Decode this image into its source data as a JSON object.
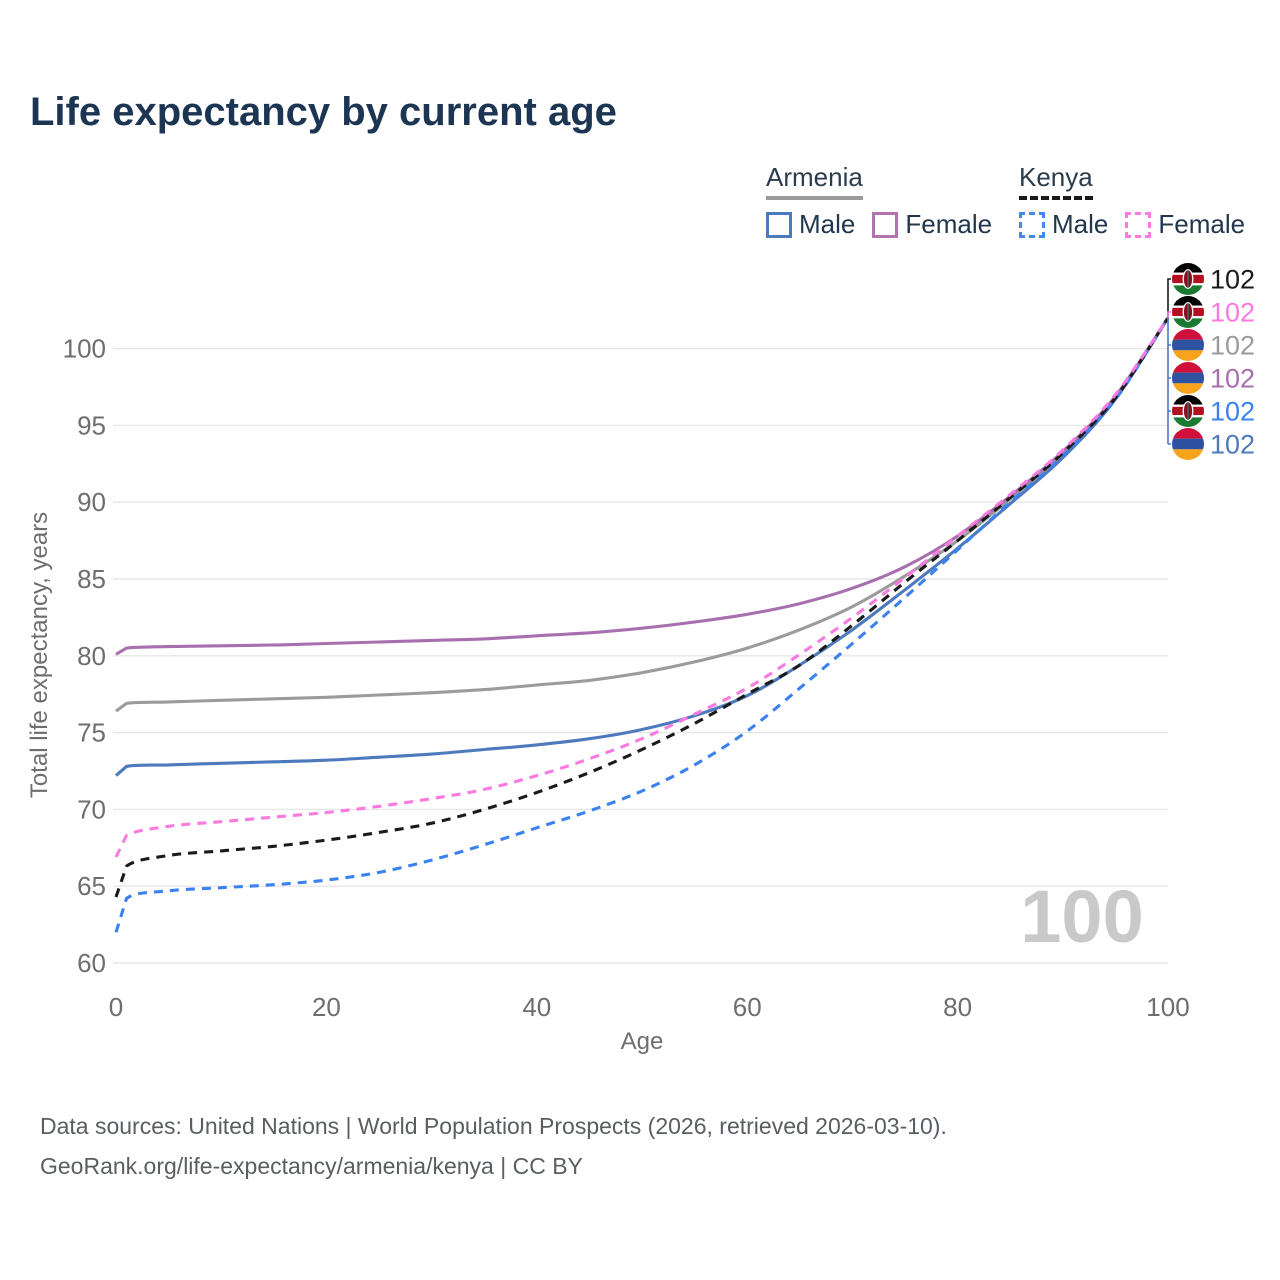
{
  "header": {
    "title": "Life expectancy by current age"
  },
  "legend": {
    "groups": [
      {
        "country": "Armenia",
        "line_style": "solid",
        "underline_color": "#9b9b9b",
        "items": [
          {
            "label": "Male",
            "box_color": "#4d79bd",
            "box_style": "solid"
          },
          {
            "label": "Female",
            "box_color": "#b273ae",
            "box_style": "solid"
          }
        ]
      },
      {
        "country": "Kenya",
        "line_style": "dashed",
        "underline_color": "#1a1a1a",
        "items": [
          {
            "label": "Male",
            "box_color": "#4189f0",
            "box_style": "dashed"
          },
          {
            "label": "Female",
            "box_color": "#fb7ae1",
            "box_style": "dashed"
          }
        ]
      }
    ]
  },
  "chart_data": {
    "type": "line",
    "title": "Life expectancy by current age",
    "xlabel": "Age",
    "ylabel": "Total life expectancy, years",
    "xlim": [
      0,
      100
    ],
    "ylim": [
      60,
      103
    ],
    "x_ticks": [
      0,
      20,
      40,
      60,
      80,
      100
    ],
    "y_ticks": [
      60,
      65,
      70,
      75,
      80,
      85,
      90,
      95,
      100
    ],
    "grid": "horizontal",
    "watermark": "100",
    "ages": [
      0,
      1,
      5,
      10,
      15,
      20,
      25,
      30,
      35,
      40,
      45,
      50,
      55,
      60,
      65,
      70,
      75,
      80,
      85,
      90,
      95,
      100
    ],
    "series": [
      {
        "id": "armenia-both",
        "name": "Armenia",
        "color": "#9b9b9b",
        "dash": false,
        "values": [
          76.4,
          76.9,
          77.0,
          77.1,
          77.2,
          77.3,
          77.45,
          77.6,
          77.8,
          78.1,
          78.4,
          78.9,
          79.6,
          80.5,
          81.7,
          83.2,
          85.2,
          87.5,
          90.2,
          93.1,
          96.8,
          102
        ]
      },
      {
        "id": "armenia-male",
        "name": "Armenia Male",
        "color": "#4d79bd",
        "dash": false,
        "values": [
          72.2,
          72.8,
          72.9,
          73.0,
          73.1,
          73.2,
          73.4,
          73.6,
          73.9,
          74.2,
          74.6,
          75.2,
          76.1,
          77.4,
          79.4,
          81.7,
          84.3,
          87.0,
          89.9,
          92.9,
          96.7,
          102
        ]
      },
      {
        "id": "armenia-female",
        "name": "Armenia Female",
        "color": "#a86fae",
        "dash": false,
        "values": [
          80.1,
          80.5,
          80.6,
          80.65,
          80.7,
          80.8,
          80.9,
          81.0,
          81.1,
          81.3,
          81.5,
          81.8,
          82.2,
          82.7,
          83.4,
          84.4,
          85.8,
          87.8,
          90.4,
          93.3,
          96.9,
          102
        ]
      },
      {
        "id": "kenya-male",
        "name": "Kenya Male",
        "color": "#3b82f0",
        "dash": true,
        "values": [
          62.0,
          64.2,
          64.7,
          64.9,
          65.1,
          65.4,
          65.9,
          66.7,
          67.7,
          68.8,
          69.9,
          71.2,
          72.9,
          75.1,
          77.9,
          80.8,
          83.8,
          86.9,
          90.0,
          93.0,
          96.7,
          102
        ]
      },
      {
        "id": "kenya-both",
        "name": "Kenya",
        "color": "#1a1a1a",
        "dash": true,
        "values": [
          64.3,
          66.3,
          67.0,
          67.3,
          67.6,
          68.0,
          68.5,
          69.1,
          70.0,
          71.1,
          72.4,
          73.9,
          75.6,
          77.5,
          79.4,
          82.0,
          84.8,
          87.5,
          90.3,
          93.2,
          96.8,
          102
        ]
      },
      {
        "id": "kenya-female",
        "name": "Kenya Female",
        "color": "#fb7ae1",
        "dash": true,
        "values": [
          66.9,
          68.3,
          68.9,
          69.2,
          69.5,
          69.8,
          70.2,
          70.7,
          71.3,
          72.2,
          73.3,
          74.6,
          76.2,
          77.9,
          80.1,
          82.5,
          85.1,
          87.8,
          90.5,
          93.4,
          97.0,
          102
        ]
      }
    ],
    "end_labels": [
      {
        "flag": "kenya",
        "value": "102",
        "color": "#1a1a1a"
      },
      {
        "flag": "kenya",
        "value": "102",
        "color": "#fb7ae1"
      },
      {
        "flag": "armenia",
        "value": "102",
        "color": "#9b9b9b"
      },
      {
        "flag": "armenia",
        "value": "102",
        "color": "#a86fae"
      },
      {
        "flag": "kenya",
        "value": "102",
        "color": "#3b82f0"
      },
      {
        "flag": "armenia",
        "value": "102",
        "color": "#4d79bd"
      }
    ],
    "flag_colors": {
      "armenia": [
        "#d0103a",
        "#2e52a0",
        "#f7a31b"
      ],
      "kenya": [
        "#000000",
        "#b21020",
        "#1a7a32"
      ]
    }
  },
  "footer": {
    "line1": "Data sources: United Nations | World Population Prospects (2026, retrieved 2026-03-10).",
    "line2": "GeoRank.org/life-expectancy/armenia/kenya | CC BY"
  }
}
